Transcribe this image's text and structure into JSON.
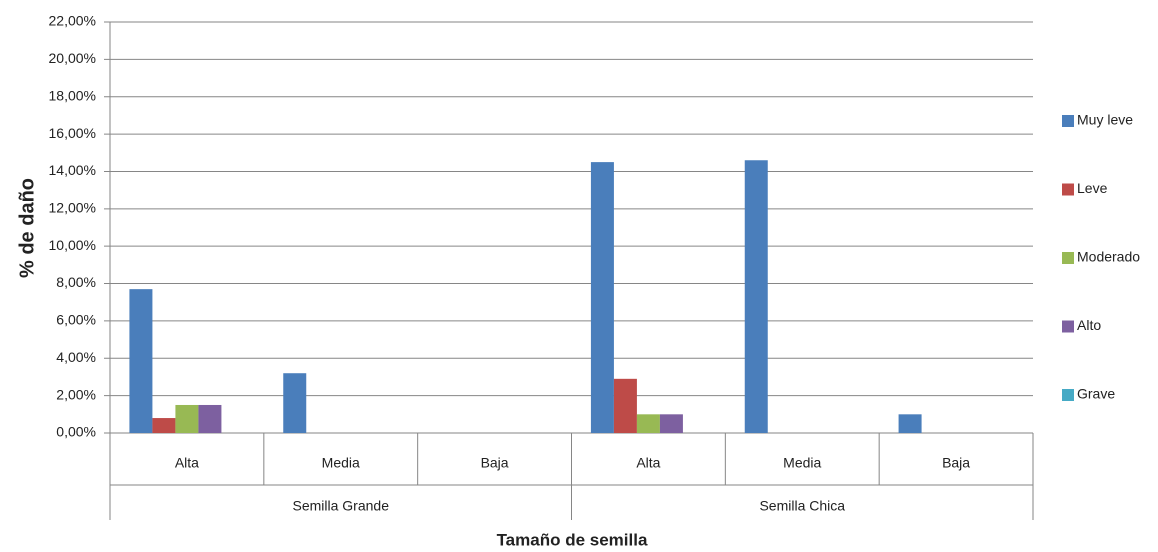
{
  "chart_data": {
    "type": "bar",
    "x_label": "Tamaño de semilla",
    "y_label": "% de daño",
    "categories": [
      "Alta",
      "Media",
      "Baja",
      "Alta",
      "Media",
      "Baja"
    ],
    "category_groups": [
      "Semilla Grande",
      "Semilla Chica"
    ],
    "series": [
      {
        "name": "Muy leve",
        "color": "#4a7ebb",
        "values": [
          7.7,
          3.2,
          0,
          14.5,
          14.6,
          1.0
        ]
      },
      {
        "name": "Leve",
        "color": "#be4b48",
        "values": [
          0.8,
          0,
          0,
          2.9,
          0,
          0
        ]
      },
      {
        "name": "Moderado",
        "color": "#98b954",
        "values": [
          1.5,
          0,
          0,
          1.0,
          0,
          0
        ]
      },
      {
        "name": "Alto",
        "color": "#7d60a0",
        "values": [
          1.5,
          0,
          0,
          1.0,
          0,
          0
        ]
      },
      {
        "name": "Grave",
        "color": "#46aac5",
        "values": [
          0,
          0,
          0,
          0,
          0,
          0
        ]
      }
    ],
    "ylim": [
      0,
      22
    ],
    "yticks": [
      {
        "value": 0,
        "label": "0,00%"
      },
      {
        "value": 2,
        "label": "2,00%"
      },
      {
        "value": 4,
        "label": "4,00%"
      },
      {
        "value": 6,
        "label": "6,00%"
      },
      {
        "value": 8,
        "label": "8,00%"
      },
      {
        "value": 10,
        "label": "10,00%"
      },
      {
        "value": 12,
        "label": "12,00%"
      },
      {
        "value": 14,
        "label": "14,00%"
      },
      {
        "value": 16,
        "label": "16,00%"
      },
      {
        "value": 18,
        "label": "18,00%"
      },
      {
        "value": 20,
        "label": "20,00%"
      },
      {
        "value": 22,
        "label": "22,00%"
      }
    ],
    "grid": true,
    "legend": "right"
  }
}
